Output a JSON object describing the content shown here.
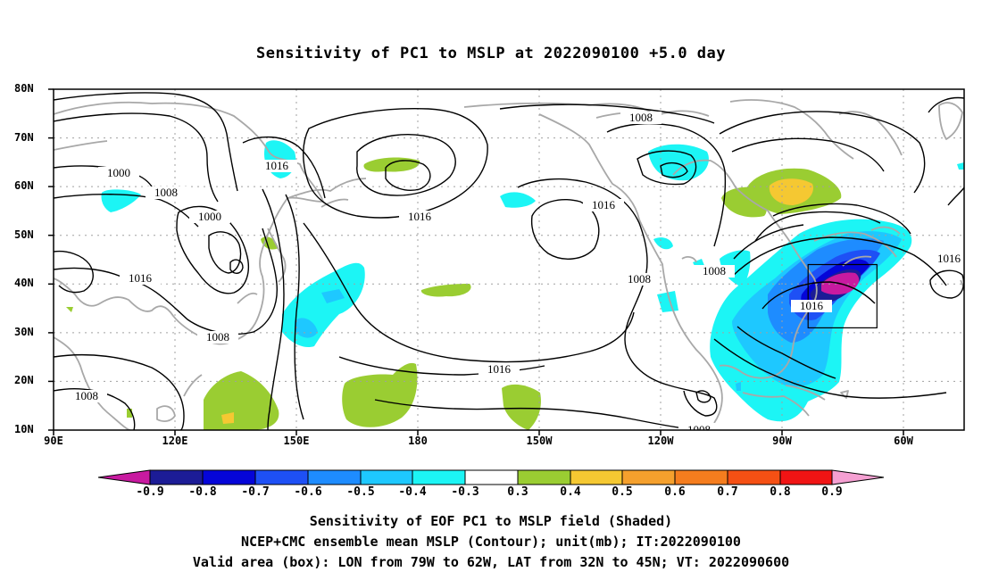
{
  "title": "Sensitivity of PC1 to MSLP at 2022090100 +5.0 day",
  "lat_labels": [
    "80N",
    "70N",
    "60N",
    "50N",
    "40N",
    "30N",
    "20N",
    "10N"
  ],
  "lon_labels": [
    "90E",
    "120E",
    "150E",
    "180",
    "150W",
    "120W",
    "90W",
    "60W"
  ],
  "contour_labels": [
    "1008",
    "1016",
    "1000",
    "1008",
    "1000",
    "1016",
    "1008",
    "1008",
    "1016",
    "1016",
    "1008",
    "1016",
    "1008",
    "1016",
    "1008",
    "1016",
    "1008"
  ],
  "colorbar": {
    "labels": [
      "-0.9",
      "-0.8",
      "-0.7",
      "-0.6",
      "-0.5",
      "-0.4",
      "-0.3",
      "0.3",
      "0.4",
      "0.5",
      "0.6",
      "0.7",
      "0.8",
      "0.9"
    ],
    "colors": [
      "#c81aa0",
      "#1c1c96",
      "#0505d8",
      "#1e50f5",
      "#1e8cff",
      "#1ec8ff",
      "#1cf5f5",
      "#ffffff",
      "#9acd32",
      "#f5c832",
      "#f5a02d",
      "#f57d1e",
      "#f55014",
      "#f01414",
      "#f5a0d2"
    ]
  },
  "captions": [
    "Sensitivity of EOF PC1 to MSLP field (Shaded)",
    "NCEP+CMC ensemble mean MSLP (Contour); unit(mb); IT:2022090100",
    "Valid area (box): LON from 79W to 62W, LAT from 32N to 45N; VT: 2022090600"
  ],
  "map": {
    "projection": "cylindrical equidistant",
    "lon_range": [
      "90E",
      "45W"
    ],
    "lat_range": [
      "10N",
      "80N"
    ],
    "valid_box": {
      "lon_west": "79W",
      "lon_east": "62W",
      "lat_south": "32N",
      "lat_north": "45N"
    },
    "colors": {
      "coast": "#a8a8a8",
      "contour": "#000000",
      "grid": "#a0a0a0"
    }
  }
}
